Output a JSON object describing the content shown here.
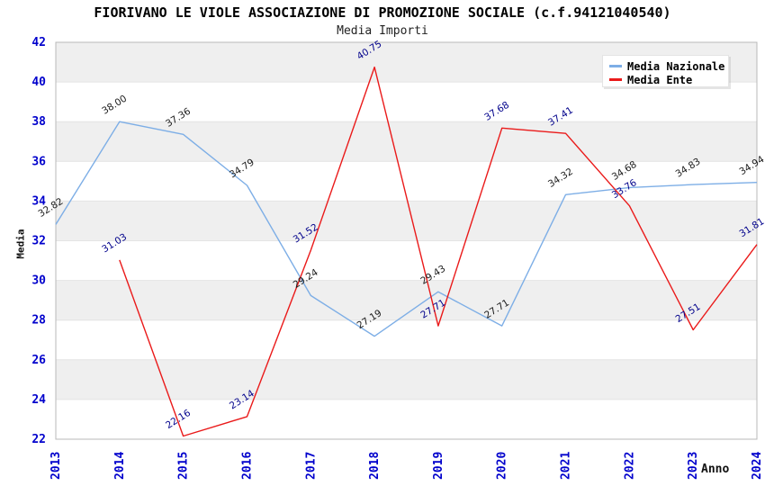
{
  "chart_data": {
    "type": "line",
    "title": "FIORIVANO LE VIOLE ASSOCIAZIONE DI PROMOZIONE SOCIALE (c.f.94121040540)",
    "subtitle": "Media Importi",
    "xlabel": "Anno",
    "ylabel": "Media",
    "x": [
      "2013",
      "2014",
      "2015",
      "2016",
      "2017",
      "2018",
      "2019",
      "2020",
      "2021",
      "2022",
      "2023",
      "2024"
    ],
    "ylim": [
      22,
      42
    ],
    "yticks": [
      22,
      24,
      26,
      28,
      30,
      32,
      34,
      36,
      38,
      40,
      42
    ],
    "grid": "horizontal-bands-alternating",
    "legend_position": "top-right",
    "series": [
      {
        "name": "Media Nazionale",
        "color": "#7daee6",
        "label_color": "#1a1a1a",
        "values": [
          32.82,
          38.0,
          37.36,
          34.79,
          29.24,
          27.19,
          29.43,
          27.71,
          34.32,
          34.68,
          34.83,
          34.94
        ]
      },
      {
        "name": "Media Ente",
        "color": "#ea1a1a",
        "label_color": "#00008b",
        "values": [
          null,
          31.03,
          22.16,
          23.14,
          31.52,
          40.75,
          27.71,
          37.68,
          37.41,
          33.76,
          27.51,
          31.81
        ]
      }
    ],
    "colors": {
      "axis_labels": "#0000cc",
      "band": "#efefef",
      "grid_line": "#e4e4e4",
      "frame": "#b8b8b8"
    }
  }
}
